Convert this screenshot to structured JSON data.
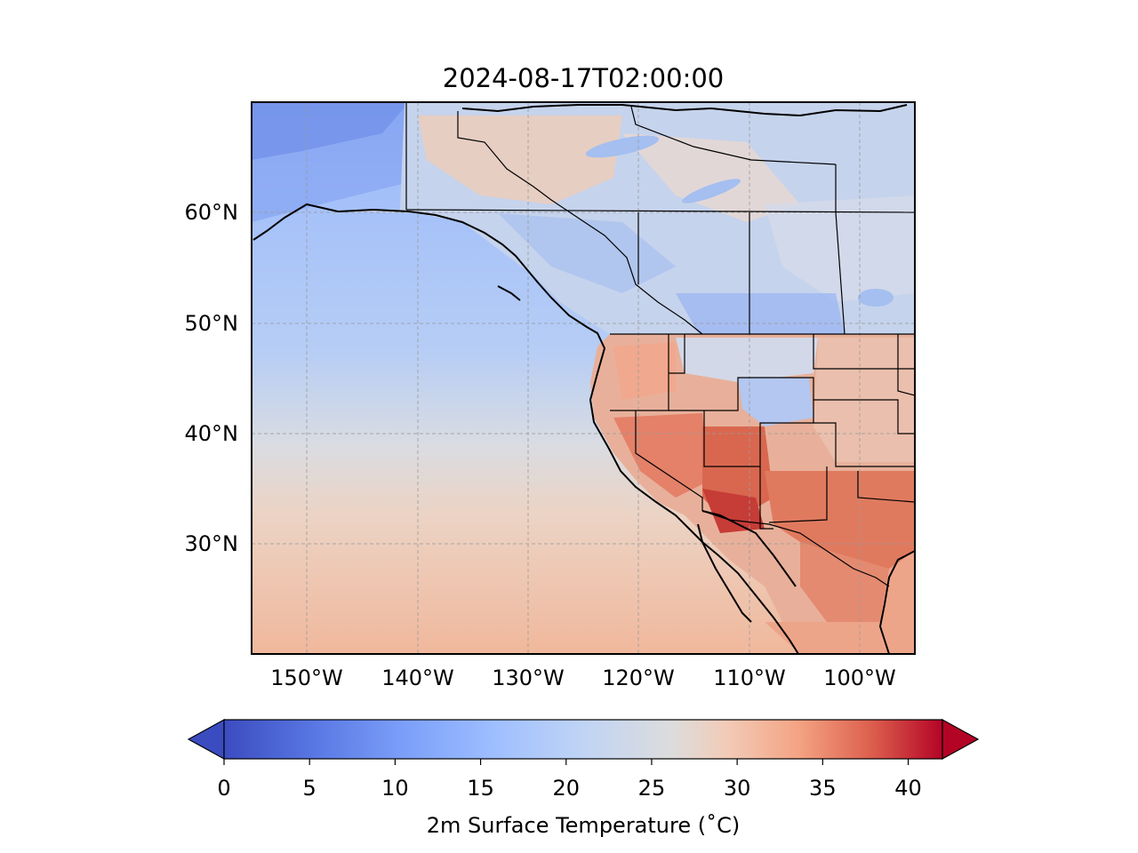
{
  "title": "2024-08-17T02:00:00",
  "map": {
    "projection": "PlateCarree",
    "extent": {
      "lon_min": -155,
      "lon_max": -95,
      "lat_min": 20,
      "lat_max": 70
    },
    "field": "2m surface temperature",
    "gridlines": true,
    "lat_ticks": [
      {
        "value": 30,
        "label": "30°N"
      },
      {
        "value": 40,
        "label": "40°N"
      },
      {
        "value": 50,
        "label": "50°N"
      },
      {
        "value": 60,
        "label": "60°N"
      }
    ],
    "lon_ticks": [
      {
        "value": -150,
        "label": "150°W"
      },
      {
        "value": -140,
        "label": "140°W"
      },
      {
        "value": -130,
        "label": "130°W"
      },
      {
        "value": -120,
        "label": "120°W"
      },
      {
        "value": -110,
        "label": "110°W"
      },
      {
        "value": -100,
        "label": "100°W"
      }
    ]
  },
  "colorbar": {
    "label": "2m Surface Temperature (˚C)",
    "colormap": "coolwarm",
    "vmin": 0,
    "vmax": 42,
    "extend": "both",
    "ticks": [
      "0",
      "5",
      "10",
      "15",
      "20",
      "25",
      "30",
      "35",
      "40"
    ],
    "tick_values": [
      0,
      5,
      10,
      15,
      20,
      25,
      30,
      35,
      40
    ]
  },
  "colors": {
    "cold": "#3b4cc0",
    "neutral": "#dddddd",
    "hot": "#b40426",
    "ocean_north": "#a9c6f7",
    "ocean_south": "#efb9a0",
    "desert_hot": "#c63c36"
  }
}
